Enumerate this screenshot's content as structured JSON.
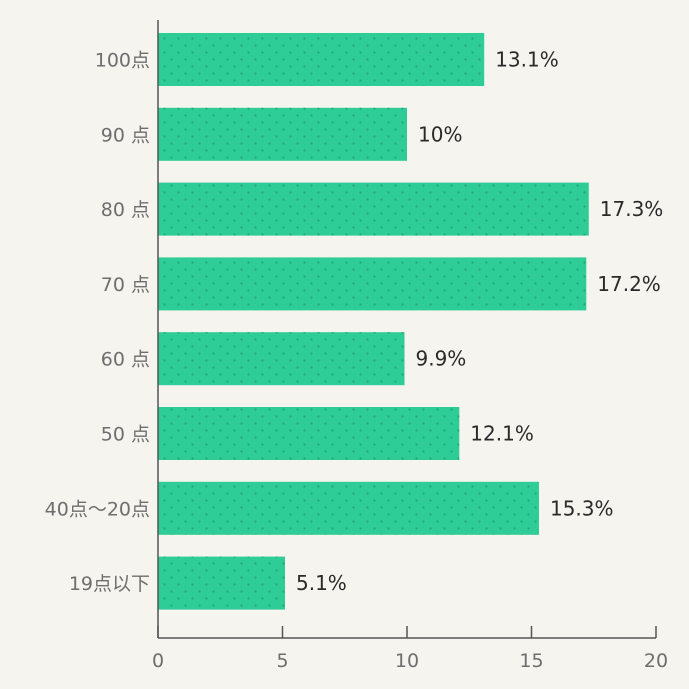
{
  "chart_data": {
    "type": "bar",
    "orientation": "horizontal",
    "categories": [
      "100点",
      "90 点",
      "80 点",
      "70 点",
      "60 点",
      "50 点",
      "40点〜20点",
      "19点以下"
    ],
    "values": [
      13.1,
      10,
      17.3,
      17.2,
      9.9,
      12.1,
      15.3,
      5.1
    ],
    "value_labels": [
      "13.1%",
      "10%",
      "17.3%",
      "17.2%",
      "9.9%",
      "12.1%",
      "15.3%",
      "5.1%"
    ],
    "x_ticks": [
      0,
      5,
      10,
      15,
      20
    ],
    "xlim": [
      0,
      20
    ],
    "title": "",
    "xlabel": "",
    "ylabel": "",
    "grid": false,
    "colors": {
      "bar": "#2ecc96",
      "bar_dot": "#22a878",
      "axis": "#555555",
      "background": "#f5f4ef"
    }
  }
}
